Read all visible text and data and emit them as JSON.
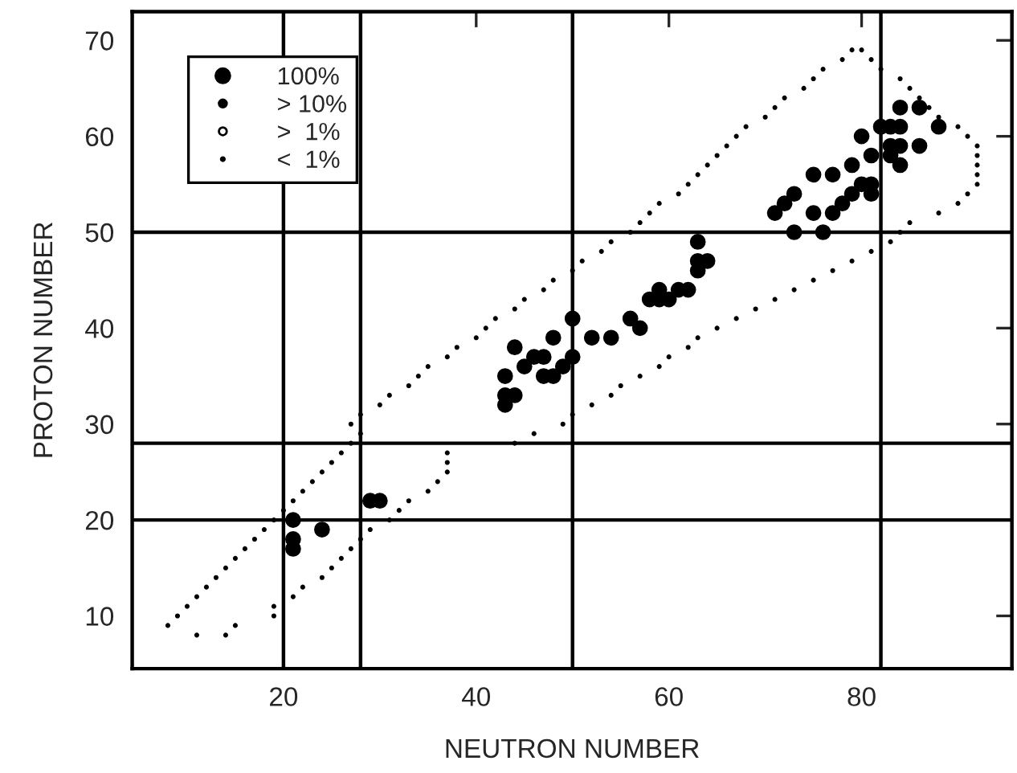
{
  "chart_data": {
    "type": "scatter",
    "xlabel": "NEUTRON NUMBER",
    "ylabel": "PROTON NUMBER",
    "xlim": [
      4.3,
      95.6
    ],
    "ylim": [
      4.5,
      73
    ],
    "xticks": [
      20,
      40,
      60,
      80
    ],
    "yticks": [
      10,
      20,
      30,
      40,
      50,
      60,
      70
    ],
    "grid": false,
    "legend": "top left",
    "marker": "circle",
    "ref_lines": [
      {
        "axis": "x",
        "value": 20
      },
      {
        "axis": "x",
        "value": 28
      },
      {
        "axis": "x",
        "value": 50
      },
      {
        "axis": "x",
        "value": 82
      },
      {
        "axis": "y",
        "value": 20
      },
      {
        "axis": "y",
        "value": 28
      },
      {
        "axis": "y",
        "value": 50
      }
    ],
    "series": [
      {
        "name": "100%",
        "color": "#000000",
        "x": [
          21,
          21,
          21,
          24,
          29,
          30,
          43,
          43,
          44,
          43,
          45,
          46,
          47,
          47,
          48,
          49,
          50,
          44,
          48,
          50,
          52,
          54,
          84,
          86,
          82,
          83,
          84,
          88,
          83,
          84,
          86,
          83,
          84,
          80,
          81,
          79,
          75,
          77,
          80,
          81,
          81,
          79,
          78,
          77,
          75,
          73,
          72,
          71,
          73,
          76,
          63,
          63,
          64,
          63,
          59,
          61,
          62,
          58,
          59,
          60,
          56,
          57
        ],
        "values": [
          20,
          18,
          17,
          19,
          22,
          22,
          35,
          33,
          33,
          32,
          36,
          37,
          37,
          35,
          35,
          36,
          37,
          38,
          39,
          41,
          39,
          39,
          63,
          63,
          61,
          61,
          61,
          61,
          59,
          59,
          59,
          58,
          57,
          60,
          58,
          57,
          56,
          56,
          55,
          55,
          54,
          54,
          53,
          52,
          52,
          54,
          53,
          52,
          50,
          50,
          49,
          47,
          47,
          46,
          44,
          44,
          44,
          43,
          43,
          43,
          41,
          40
        ]
      },
      {
        "name": "> 10%",
        "color": "#000000"
      },
      {
        "name": ">  1%",
        "color": "#000000"
      },
      {
        "name": "<  1%",
        "color": "#000000",
        "x": [
          11,
          14,
          8,
          15,
          9,
          19,
          10,
          19,
          11,
          21,
          12,
          22,
          13,
          24,
          14,
          25,
          15,
          26,
          16,
          27,
          17,
          28,
          18,
          29,
          19,
          31,
          20,
          32,
          21,
          33,
          22,
          35,
          23,
          36,
          24,
          37,
          25,
          37,
          26,
          37,
          27,
          44,
          28,
          46,
          27,
          49,
          28,
          50,
          30,
          52,
          31,
          54,
          33,
          55,
          34,
          57,
          35,
          59,
          37,
          60,
          38,
          62,
          40,
          63,
          41,
          65,
          42,
          67,
          44,
          69,
          45,
          71,
          47,
          73,
          48,
          75,
          50,
          77,
          51,
          79,
          53,
          81,
          54,
          83,
          56,
          84,
          57,
          85,
          58,
          88,
          59,
          90,
          61,
          91,
          62,
          92,
          63,
          92,
          64,
          92,
          65,
          92,
          66,
          92,
          67,
          91,
          68,
          90,
          70,
          88,
          71,
          87,
          72,
          86,
          74,
          85,
          75,
          84,
          76,
          82,
          78,
          81,
          79,
          80
        ],
        "values": [
          8,
          8,
          9,
          9,
          10,
          10,
          11,
          11,
          12,
          12,
          13,
          13,
          14,
          14,
          15,
          15,
          16,
          16,
          17,
          17,
          18,
          18,
          19,
          19,
          20,
          20,
          21,
          21,
          22,
          22,
          23,
          23,
          24,
          24,
          25,
          25,
          26,
          26,
          27,
          27,
          28,
          28,
          29,
          29,
          30,
          30,
          31,
          31,
          32,
          32,
          33,
          33,
          34,
          34,
          35,
          35,
          36,
          36,
          37,
          37,
          38,
          38,
          39,
          39,
          40,
          40,
          41,
          41,
          42,
          42,
          43,
          43,
          44,
          44,
          45,
          45,
          46,
          46,
          47,
          47,
          48,
          48,
          49,
          49,
          50,
          50,
          51,
          51,
          52,
          52,
          53,
          53,
          54,
          54,
          55,
          55,
          56,
          56,
          57,
          57,
          58,
          58,
          59,
          59,
          60,
          60,
          61,
          61,
          62,
          62,
          63,
          63,
          64,
          64,
          65,
          65,
          66,
          66,
          67,
          67,
          68,
          68,
          69,
          69
        ]
      }
    ]
  }
}
